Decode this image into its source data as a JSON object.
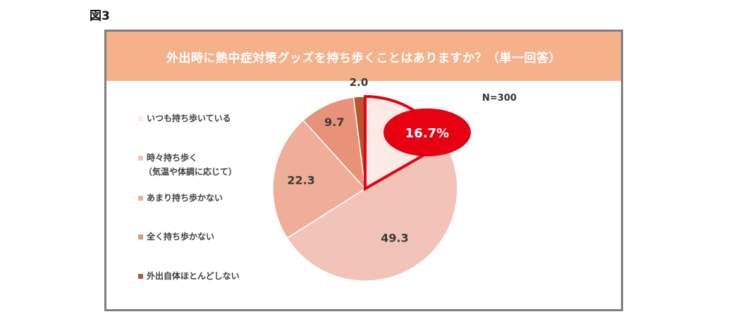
{
  "figure_label": "図3",
  "chart_data": {
    "type": "pie",
    "title": "外出時に熱中症対策グッズを持ち歩くことはありますか？（単一回答）",
    "note": "N=300",
    "start_angle_deg": 0,
    "direction": "clockwise",
    "slices": [
      {
        "label": "いつも持ち歩いている",
        "label_lines": [
          "いつも持ち歩いている"
        ],
        "value": 16.7,
        "value_label": "16.7%",
        "color": "#fbeae6",
        "highlight": true
      },
      {
        "label": "時々持ち歩く（気温や体調に応じて）",
        "label_lines": [
          "時々持ち歩く",
          "（気温や体調に応じて）"
        ],
        "value": 49.3,
        "value_label": "49.3",
        "color": "#f2c3b9",
        "highlight": false
      },
      {
        "label": "あまり持ち歩かない",
        "label_lines": [
          "あまり持ち歩かない"
        ],
        "value": 22.3,
        "value_label": "22.3",
        "color": "#eeae99",
        "highlight": false
      },
      {
        "label": "全く持ち歩かない",
        "label_lines": [
          "全く持ち歩かない"
        ],
        "value": 9.7,
        "value_label": "9.7",
        "color": "#e8927a",
        "highlight": false
      },
      {
        "label": "外出自体ほとんどしない",
        "label_lines": [
          "外出自体ほとんどしない"
        ],
        "value": 2.0,
        "value_label": "2.0",
        "color": "#b9562f",
        "highlight": false
      }
    ],
    "highlight_color": "#e60012"
  }
}
